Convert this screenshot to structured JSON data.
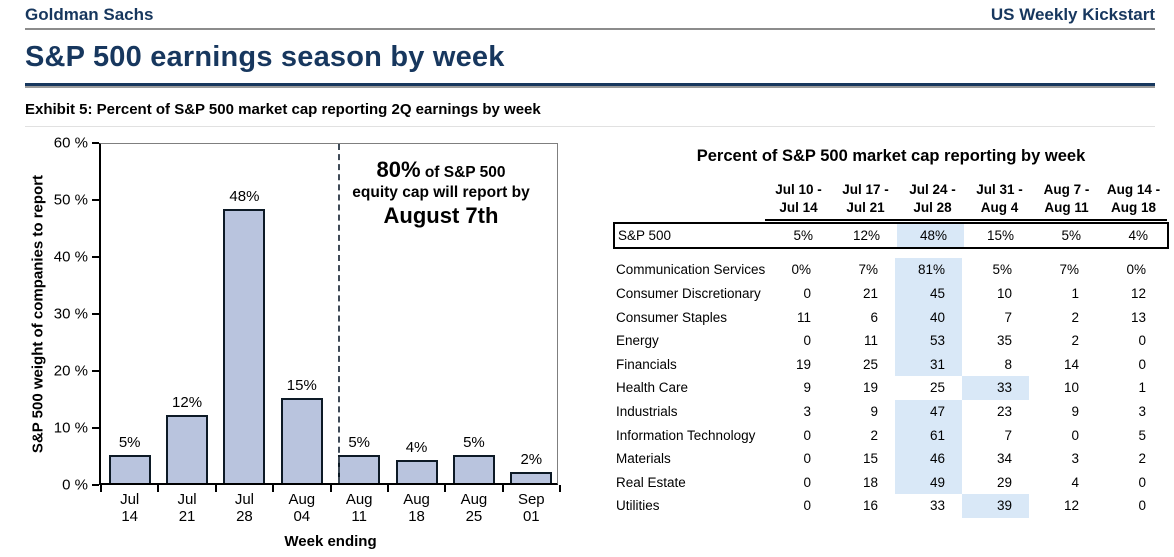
{
  "header": {
    "brand": "Goldman Sachs",
    "publication": "US Weekly Kickstart"
  },
  "page_title": "S&P 500 earnings season by week",
  "exhibit_title": "Exhibit 5: Percent of S&P 500 market cap reporting 2Q earnings by week",
  "colors": {
    "navy": "#17375e",
    "bar_fill": "#b9c4de",
    "bar_border": "#0d1a26",
    "highlight": "#d9e8f7",
    "dashed_line": "#3e4a57"
  },
  "chart_data": [
    {
      "type": "bar",
      "title": "",
      "ylabel": "S&P 500 weight of companies to report",
      "xlabel": "Week ending",
      "ylim": [
        0,
        60
      ],
      "ytick_labels": [
        "60 %",
        "50 %",
        "40 %",
        "30 %",
        "20 %",
        "10 %",
        "0 %"
      ],
      "categories": [
        [
          "Jul",
          "14"
        ],
        [
          "Jul",
          "21"
        ],
        [
          "Jul",
          "28"
        ],
        [
          "Aug",
          "04"
        ],
        [
          "Aug",
          "11"
        ],
        [
          "Aug",
          "18"
        ],
        [
          "Aug",
          "25"
        ],
        [
          "Sep",
          "01"
        ]
      ],
      "values": [
        5,
        12,
        48,
        15,
        5,
        4,
        5,
        2
      ],
      "bar_labels": [
        "5%",
        "12%",
        "48%",
        "15%",
        "5%",
        "4%",
        "5%",
        "2%"
      ],
      "divider_after_index": 3,
      "grid": "off",
      "annotation": {
        "big1": "80%",
        "small1": " of S&P 500",
        "line2": "equity cap will report by",
        "line3": "August 7th"
      }
    },
    {
      "type": "table",
      "title": "Percent of S&P 500 market cap reporting by week",
      "columns": [
        [
          "Jul 10 -",
          "Jul 14"
        ],
        [
          "Jul 17 -",
          "Jul 21"
        ],
        [
          "Jul 24 -",
          "Jul 28"
        ],
        [
          "Jul 31 -",
          "Aug 4"
        ],
        [
          "Aug 7 -",
          "Aug 11"
        ],
        [
          "Aug 14 -",
          "Aug 18"
        ]
      ],
      "rows": [
        {
          "label": "S&P 500",
          "values": [
            "5%",
            "12%",
            "48%",
            "15%",
            "5%",
            "4%"
          ],
          "highlight": 2,
          "boxed": true
        },
        {
          "label": "Communication Services",
          "values": [
            "0%",
            "7%",
            "81%",
            "5%",
            "7%",
            "0%"
          ],
          "highlight": 2
        },
        {
          "label": "Consumer Discretionary",
          "values": [
            "0",
            "21",
            "45",
            "10",
            "1",
            "12"
          ],
          "highlight": 2
        },
        {
          "label": "Consumer Staples",
          "values": [
            "11",
            "6",
            "40",
            "7",
            "2",
            "13"
          ],
          "highlight": 2
        },
        {
          "label": "Energy",
          "values": [
            "0",
            "11",
            "53",
            "35",
            "2",
            "0"
          ],
          "highlight": 2
        },
        {
          "label": "Financials",
          "values": [
            "19",
            "25",
            "31",
            "8",
            "14",
            "0"
          ],
          "highlight": 2
        },
        {
          "label": "Health Care",
          "values": [
            "9",
            "19",
            "25",
            "33",
            "10",
            "1"
          ],
          "highlight": 3
        },
        {
          "label": "Industrials",
          "values": [
            "3",
            "9",
            "47",
            "23",
            "9",
            "3"
          ],
          "highlight": 2
        },
        {
          "label": "Information Technology",
          "values": [
            "0",
            "2",
            "61",
            "7",
            "0",
            "5"
          ],
          "highlight": 2
        },
        {
          "label": "Materials",
          "values": [
            "0",
            "15",
            "46",
            "34",
            "3",
            "2"
          ],
          "highlight": 2
        },
        {
          "label": "Real Estate",
          "values": [
            "0",
            "18",
            "49",
            "29",
            "4",
            "0"
          ],
          "highlight": 2
        },
        {
          "label": "Utilities",
          "values": [
            "0",
            "16",
            "33",
            "39",
            "12",
            "0"
          ],
          "highlight": 3
        }
      ]
    }
  ]
}
